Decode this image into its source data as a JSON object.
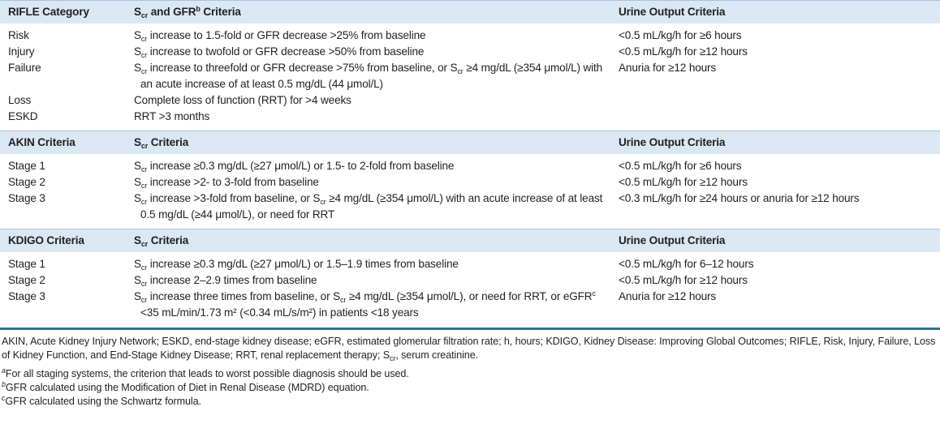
{
  "table": {
    "sections": [
      {
        "header": [
          "RIFLE Category",
          [
            "S",
            {
              "sub": "cr"
            },
            " and GFR",
            {
              "sup": "b"
            },
            " Criteria"
          ],
          "Urine Output Criteria"
        ],
        "rows": [
          [
            "Risk",
            [
              "S",
              {
                "sub": "cr"
              },
              " increase to 1.5-fold or GFR decrease >25% from baseline"
            ],
            "<0.5 mL/kg/h for ≥6 hours"
          ],
          [
            "Injury",
            [
              "S",
              {
                "sub": "cr"
              },
              " increase to twofold or GFR decrease >50% from baseline"
            ],
            "<0.5 mL/kg/h for ≥12 hours"
          ],
          [
            "Failure",
            [
              "S",
              {
                "sub": "cr"
              },
              " increase to threefold or GFR decrease >75% from baseline, or S",
              {
                "sub": "cr"
              },
              " ≥4 mg/dL (≥354 μmol/L) with an acute increase of at least 0.5 mg/dL (44 μmol/L)"
            ],
            "Anuria for ≥12 hours"
          ],
          [
            "Loss",
            "Complete loss of function (RRT) for >4 weeks"
          ],
          [
            "ESKD",
            "RRT >3 months"
          ]
        ]
      },
      {
        "header": [
          "AKIN Criteria",
          [
            "S",
            {
              "sub": "cr"
            },
            " Criteria"
          ],
          "Urine Output Criteria"
        ],
        "rows": [
          [
            "Stage 1",
            [
              "S",
              {
                "sub": "cr"
              },
              " increase ≥0.3 mg/dL (≥27 μmol/L) or 1.5- to 2-fold from baseline"
            ],
            "<0.5 mL/kg/h for ≥6 hours"
          ],
          [
            "Stage 2",
            [
              "S",
              {
                "sub": "cr"
              },
              " increase >2- to 3-fold from baseline"
            ],
            "<0.5 mL/kg/h for ≥12 hours"
          ],
          [
            "Stage 3",
            [
              "S",
              {
                "sub": "cr"
              },
              " increase >3-fold from baseline, or S",
              {
                "sub": "cr"
              },
              " ≥4 mg/dL (≥354 μmol/L) with an acute increase of at least 0.5 mg/dL (≥44 μmol/L), or need for RRT"
            ],
            "<0.3 mL/kg/h for ≥24 hours or anuria for ≥12 hours"
          ]
        ]
      },
      {
        "header": [
          "KDIGO Criteria",
          [
            "S",
            {
              "sub": "cr"
            },
            " Criteria"
          ],
          "Urine Output Criteria"
        ],
        "rows": [
          [
            "Stage 1",
            [
              "S",
              {
                "sub": "cr"
              },
              " increase ≥0.3 mg/dL (≥27 μmol/L) or 1.5–1.9 times from baseline"
            ],
            "<0.5 mL/kg/h for 6–12 hours"
          ],
          [
            "Stage 2",
            [
              "S",
              {
                "sub": "cr"
              },
              " increase 2–2.9 times from baseline"
            ],
            "<0.5 mL/kg/h for ≥12 hours"
          ],
          [
            "Stage 3",
            [
              "S",
              {
                "sub": "cr"
              },
              " increase three times from baseline, or S",
              {
                "sub": "cr"
              },
              " ≥4 mg/dL (≥354 μmol/L), or need for RRT, or eGFR",
              {
                "sup": "c"
              },
              " <35 mL/min/1.73 m² (<0.34 mL/s/m²) in patients <18 years"
            ],
            "Anuria for ≥12 hours"
          ]
        ]
      }
    ]
  },
  "footnotes": [
    [
      "AKIN, Acute Kidney Injury Network; ESKD, end-stage kidney disease; eGFR, estimated glomerular filtration rate; h, hours; KDIGO, Kidney Disease: Improving Global Outcomes; RIFLE, Risk, Injury, Failure, Loss of Kidney Function, and End-Stage Kidney Disease; RRT, renal replacement therapy; S",
      {
        "sub": "cr"
      },
      ", serum creatinine."
    ],
    [
      {
        "sup": "a"
      },
      "For all staging systems, the criterion that leads to worst possible diagnosis should be used."
    ],
    [
      {
        "sup": "b"
      },
      "GFR calculated using the Modification of Diet in Renal Disease (MDRD) equation."
    ],
    [
      {
        "sup": "c"
      },
      "GFR calculated using the Schwartz formula."
    ]
  ]
}
